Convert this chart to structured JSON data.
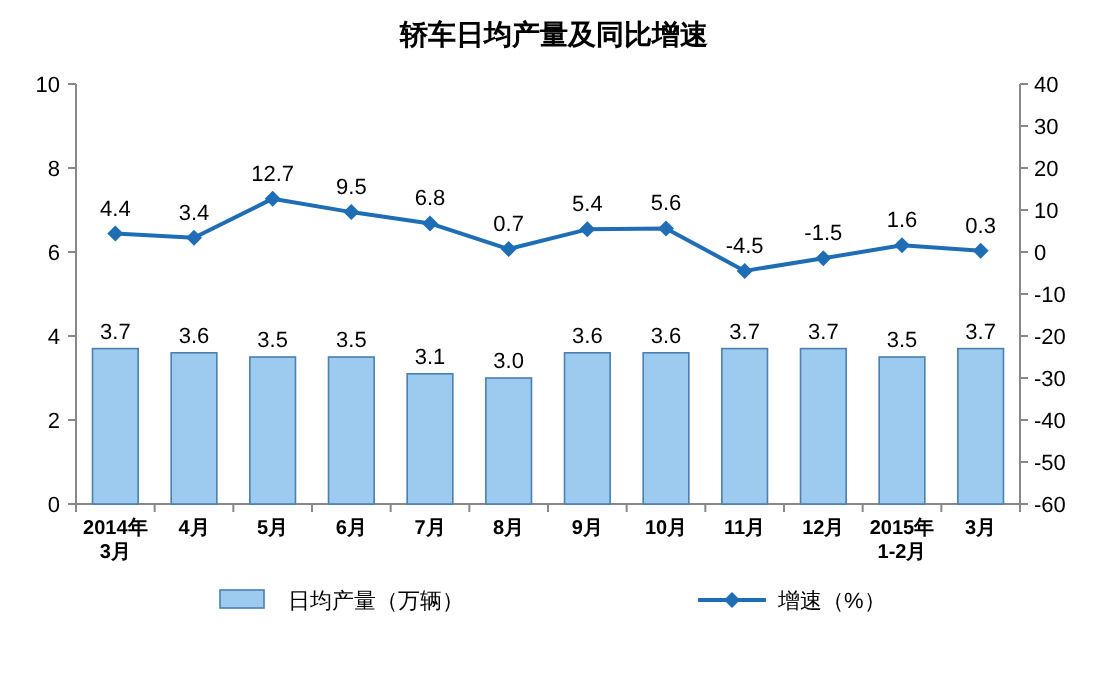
{
  "chart_data": {
    "type": "bar",
    "title": "轿车日均产量及同比增速",
    "categories": [
      "2014年\n3月",
      "4月",
      "5月",
      "6月",
      "7月",
      "8月",
      "9月",
      "10月",
      "11月",
      "12月",
      "2015年\n1-2月",
      "3月"
    ],
    "series": [
      {
        "name": "日均产量（万辆）",
        "color": "#9dcbef",
        "values": [
          3.7,
          3.6,
          3.5,
          3.5,
          3.1,
          3.0,
          3.6,
          3.6,
          3.7,
          3.7,
          3.5,
          3.7
        ],
        "value_labels": [
          "3.7",
          "3.6",
          "3.5",
          "3.5",
          "3.1",
          "3.0",
          "3.6",
          "3.6",
          "3.7",
          "3.7",
          "3.5",
          "3.7"
        ]
      },
      {
        "name": "增速（%）",
        "type": "line",
        "axis": "y2",
        "color": "#1f6db5",
        "values": [
          4.4,
          3.4,
          12.7,
          9.5,
          6.8,
          0.7,
          5.4,
          5.6,
          -4.5,
          -1.5,
          1.6,
          0.3
        ],
        "value_labels": [
          "4.4",
          "3.4",
          "12.7",
          "9.5",
          "6.8",
          "0.7",
          "5.4",
          "5.6",
          "-4.5",
          "-1.5",
          "1.6",
          "0.3"
        ]
      }
    ],
    "ylim": [
      0,
      10
    ],
    "yticks": [
      0,
      2,
      4,
      6,
      8,
      10
    ],
    "y2lim": [
      -60,
      40
    ],
    "y2ticks": [
      -60,
      -50,
      -40,
      -30,
      -20,
      -10,
      0,
      10,
      20,
      30,
      40
    ],
    "legend": "bottom",
    "marker": "diamond",
    "line_style": "solid",
    "grid": false
  }
}
